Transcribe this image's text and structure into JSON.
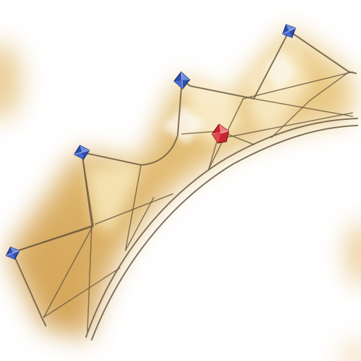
{
  "scene": {
    "object": "crown-icon",
    "colors": {
      "background": "#ffffff",
      "glow": "#d9a441",
      "glow_light": "#f3dfa8",
      "wire": "#6b5a3e",
      "sapphire": "#2d4fb0",
      "sapphire_light": "#6f8fe0",
      "ruby": "#c8262e",
      "ruby_light": "#f07a7e"
    },
    "gems": [
      {
        "name": "gem-left-end",
        "kind": "sapphire"
      },
      {
        "name": "gem-left",
        "kind": "sapphire"
      },
      {
        "name": "gem-center",
        "kind": "sapphire"
      },
      {
        "name": "gem-ruby",
        "kind": "ruby"
      },
      {
        "name": "gem-right",
        "kind": "sapphire"
      }
    ]
  }
}
